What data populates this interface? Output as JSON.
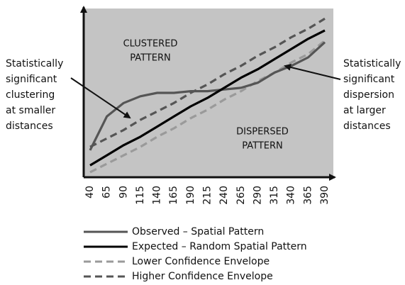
{
  "chart_data": {
    "type": "line",
    "x": [
      40,
      65,
      90,
      115,
      140,
      165,
      190,
      215,
      240,
      265,
      290,
      315,
      340,
      365,
      390
    ],
    "xlim": [
      40,
      390
    ],
    "ylim": [
      0,
      100
    ],
    "series": [
      {
        "name": "Observed – Spatial Pattern",
        "color": "#555555",
        "dashed": false,
        "values": [
          16,
          36,
          44,
          48,
          50,
          50,
          51,
          51,
          52,
          53,
          56,
          62,
          66,
          71,
          80
        ]
      },
      {
        "name": "Expected – Random Spatial Pattern",
        "color": "#000000",
        "dashed": false,
        "values": [
          7,
          13,
          19,
          24,
          30,
          36,
          42,
          47,
          53,
          59,
          64,
          70,
          76,
          82,
          87
        ]
      },
      {
        "name": "Lower Confidence Envelope",
        "color": "#9a9a9a",
        "dashed": true,
        "values": [
          3,
          8,
          13,
          18,
          24,
          29,
          35,
          40,
          46,
          51,
          57,
          62,
          68,
          73,
          81
        ]
      },
      {
        "name": "Higher Confidence Envelope",
        "color": "#555555",
        "dashed": true,
        "values": [
          18,
          23,
          28,
          34,
          39,
          44,
          50,
          55,
          61,
          66,
          72,
          77,
          83,
          88,
          94
        ]
      }
    ],
    "annotations": {
      "clustered": [
        "CLUSTERED",
        "PATTERN"
      ],
      "dispersed": [
        "DISPERSED",
        "PATTERN"
      ],
      "left_note": [
        "Statistically",
        "significant",
        "clustering",
        "at smaller",
        "distances"
      ],
      "right_note": [
        "Statistically",
        "significant",
        "dispersion",
        "at larger",
        "distances"
      ]
    }
  }
}
